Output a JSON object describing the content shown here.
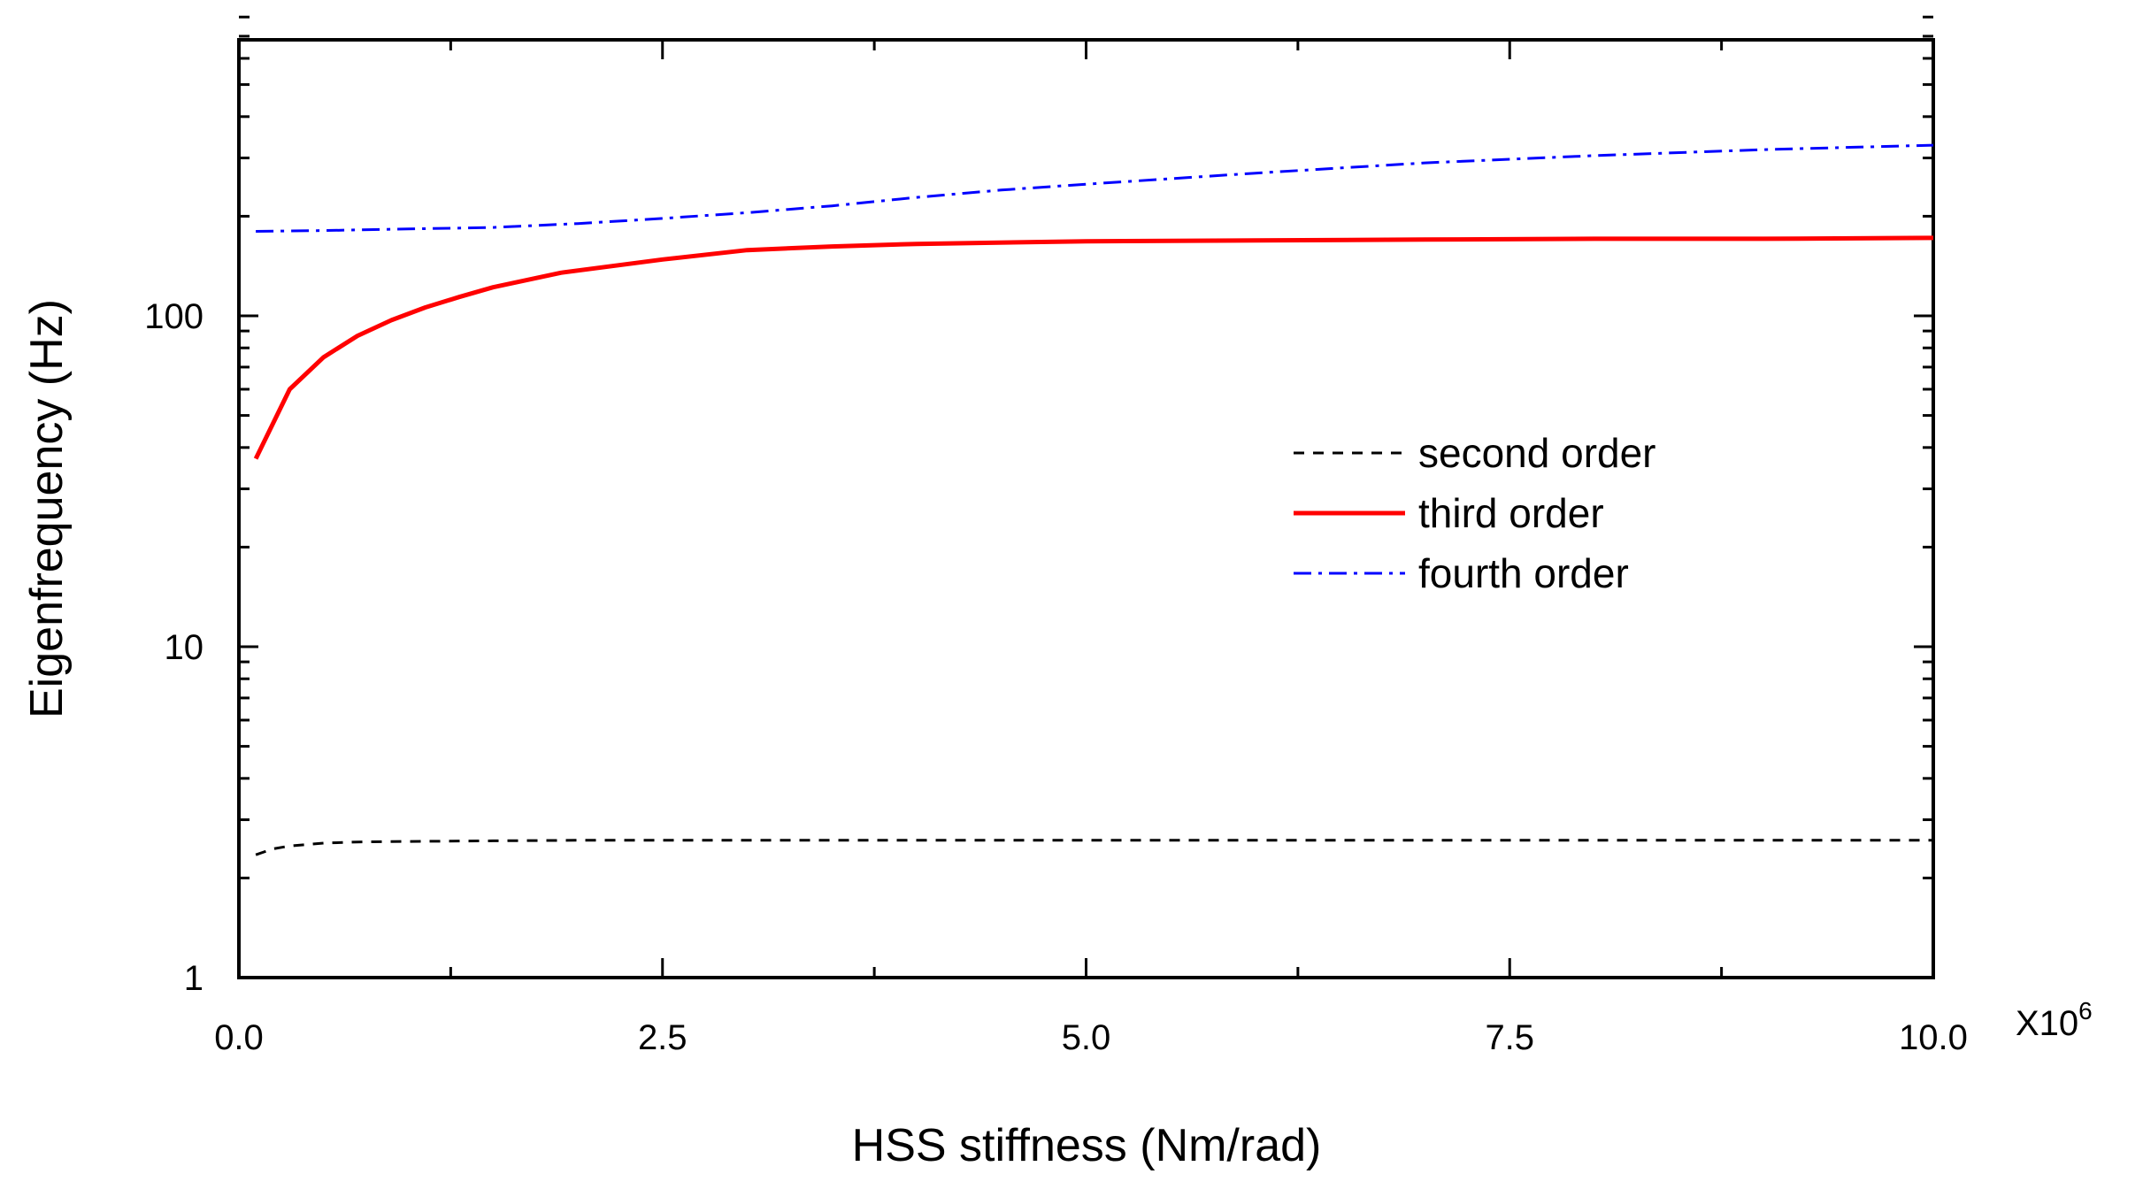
{
  "chart_data": {
    "type": "line",
    "xlabel": "HSS stiffness (Nm/rad)",
    "ylabel": "Eigenfrequency (Hz)",
    "x_multiplier_label": {
      "base": "X10",
      "exponent": "6"
    },
    "xlim": [
      0,
      10.0
    ],
    "ylim": [
      1,
      800
    ],
    "yscale": "log",
    "x_ticks": [
      {
        "value": 0,
        "label": "0.0"
      },
      {
        "value": 2.5,
        "label": "2.5"
      },
      {
        "value": 5.0,
        "label": "5.0"
      },
      {
        "value": 7.5,
        "label": "7.5"
      },
      {
        "value": 10.0,
        "label": "10.0"
      }
    ],
    "x_minor_ticks": [
      1.25,
      3.75,
      6.25,
      8.75
    ],
    "y_ticks": [
      {
        "value": 1,
        "label": "1"
      },
      {
        "value": 10,
        "label": "10"
      },
      {
        "value": 100,
        "label": "100"
      }
    ],
    "grid": false,
    "legend_position": "center-right",
    "series": [
      {
        "name": "second order",
        "color": "#000000",
        "style": "dashed",
        "x": [
          0.1,
          0.2,
          0.3,
          0.5,
          0.7,
          1.0,
          1.5,
          2.0,
          3.0,
          5.0,
          7.5,
          10.0
        ],
        "y": [
          2.35,
          2.45,
          2.5,
          2.55,
          2.57,
          2.58,
          2.59,
          2.6,
          2.6,
          2.6,
          2.6,
          2.6
        ]
      },
      {
        "name": "third order",
        "color": "#ff0000",
        "style": "solid",
        "x": [
          0.1,
          0.3,
          0.5,
          0.7,
          0.9,
          1.1,
          1.3,
          1.5,
          1.9,
          2.5,
          3.0,
          3.5,
          4.0,
          5.0,
          6.0,
          7.0,
          8.0,
          9.0,
          10.0
        ],
        "y": [
          37,
          60,
          75,
          87,
          97,
          106,
          114,
          122,
          135,
          148,
          158,
          162,
          165,
          168,
          169,
          170,
          171,
          171,
          172
        ]
      },
      {
        "name": "fourth order",
        "color": "#0000ff",
        "style": "dashdot",
        "x": [
          0.1,
          0.5,
          1.0,
          1.5,
          2.0,
          2.5,
          3.0,
          3.5,
          4.0,
          4.5,
          5.0,
          6.0,
          7.0,
          8.0,
          9.0,
          10.0
        ],
        "y": [
          180,
          181,
          183,
          185,
          190,
          197,
          205,
          215,
          228,
          240,
          250,
          270,
          290,
          305,
          318,
          328
        ]
      }
    ]
  }
}
